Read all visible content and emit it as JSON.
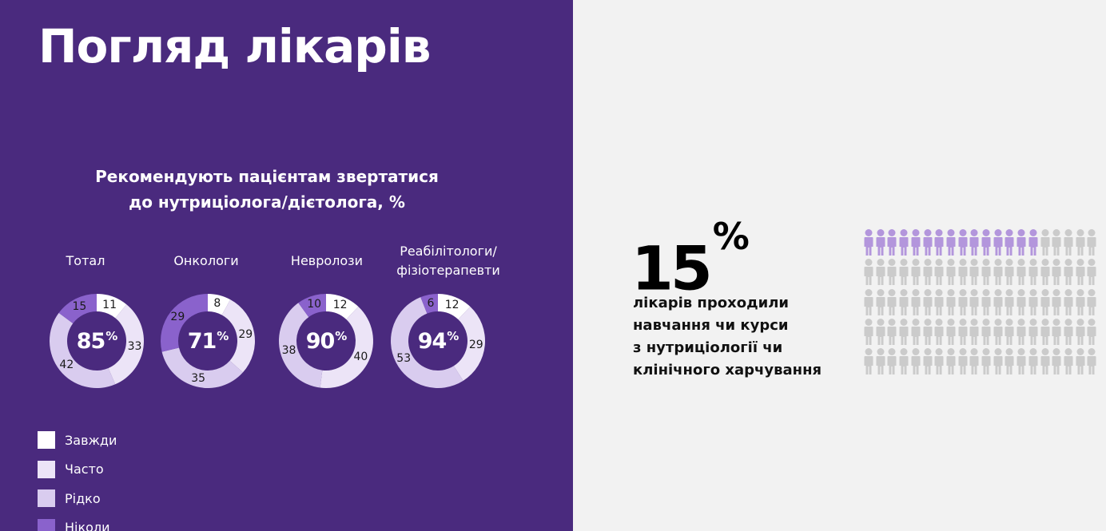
{
  "page": {
    "title": "Погляд лікарів"
  },
  "recommend_chart": {
    "title_line1": "Рекомендують пацієнтам звертатися",
    "title_line2": "до нутриціолога/дієтолога, %",
    "categories": [
      {
        "label_line1": "Тотал",
        "label_line2": "",
        "center_value": "85",
        "center_suffix": "%"
      },
      {
        "label_line1": "Онкологи",
        "label_line2": "",
        "center_value": "71",
        "center_suffix": "%"
      },
      {
        "label_line1": "Невролози",
        "label_line2": "",
        "center_value": "90",
        "center_suffix": "%"
      },
      {
        "label_line1": "Реабілітологи/",
        "label_line2": "фізіотерапевти",
        "center_value": "94",
        "center_suffix": "%"
      }
    ],
    "legend": [
      {
        "label": "Завжди",
        "color": "#ffffff"
      },
      {
        "label": "Часто",
        "color": "#ece4f7"
      },
      {
        "label": "Рідко",
        "color": "#d9ccef"
      },
      {
        "label": "Ніколи",
        "color": "#8a62cc"
      }
    ]
  },
  "chart_data": [
    {
      "type": "pie",
      "subtype": "donut",
      "title": "Рекомендують пацієнтам звертатися до нутриціолога/дієтолога, %",
      "categories": [
        "Завжди",
        "Часто",
        "Рідко",
        "Ніколи"
      ],
      "series": [
        {
          "name": "Тотал",
          "values": [
            11,
            33,
            42,
            15
          ],
          "center_label": "85%"
        },
        {
          "name": "Онкологи",
          "values": [
            8,
            29,
            35,
            29
          ],
          "center_label": "71%"
        },
        {
          "name": "Невролози",
          "values": [
            12,
            40,
            38,
            10
          ],
          "center_label": "90%"
        },
        {
          "name": "Реабілітологи/фізіотерапевти",
          "values": [
            12,
            29,
            53,
            6
          ],
          "center_label": "94%"
        }
      ],
      "colors": [
        "#ffffff",
        "#ece4f7",
        "#d9ccef",
        "#8a62cc"
      ],
      "legend_position": "bottom-left"
    },
    {
      "type": "pictogram",
      "title": "15% лікарів проходили навчання чи курси з нутриціології чи клінічного харчування",
      "total": 100,
      "highlighted": 15,
      "rows": 5,
      "columns": 20,
      "highlight_color": "#b396dc",
      "base_color": "#cbcbcb"
    }
  ],
  "stat": {
    "value": "15",
    "suffix": "%",
    "line1": "лікарів проходили",
    "line2": "навчання чи курси",
    "line3": "з нутриціології чи",
    "line4": "клінічного харчування"
  },
  "pictogram": {
    "total": 100,
    "highlighted": 15,
    "columns": 20,
    "highlight_color": "#b396dc",
    "base_color": "#cbcbcb"
  }
}
